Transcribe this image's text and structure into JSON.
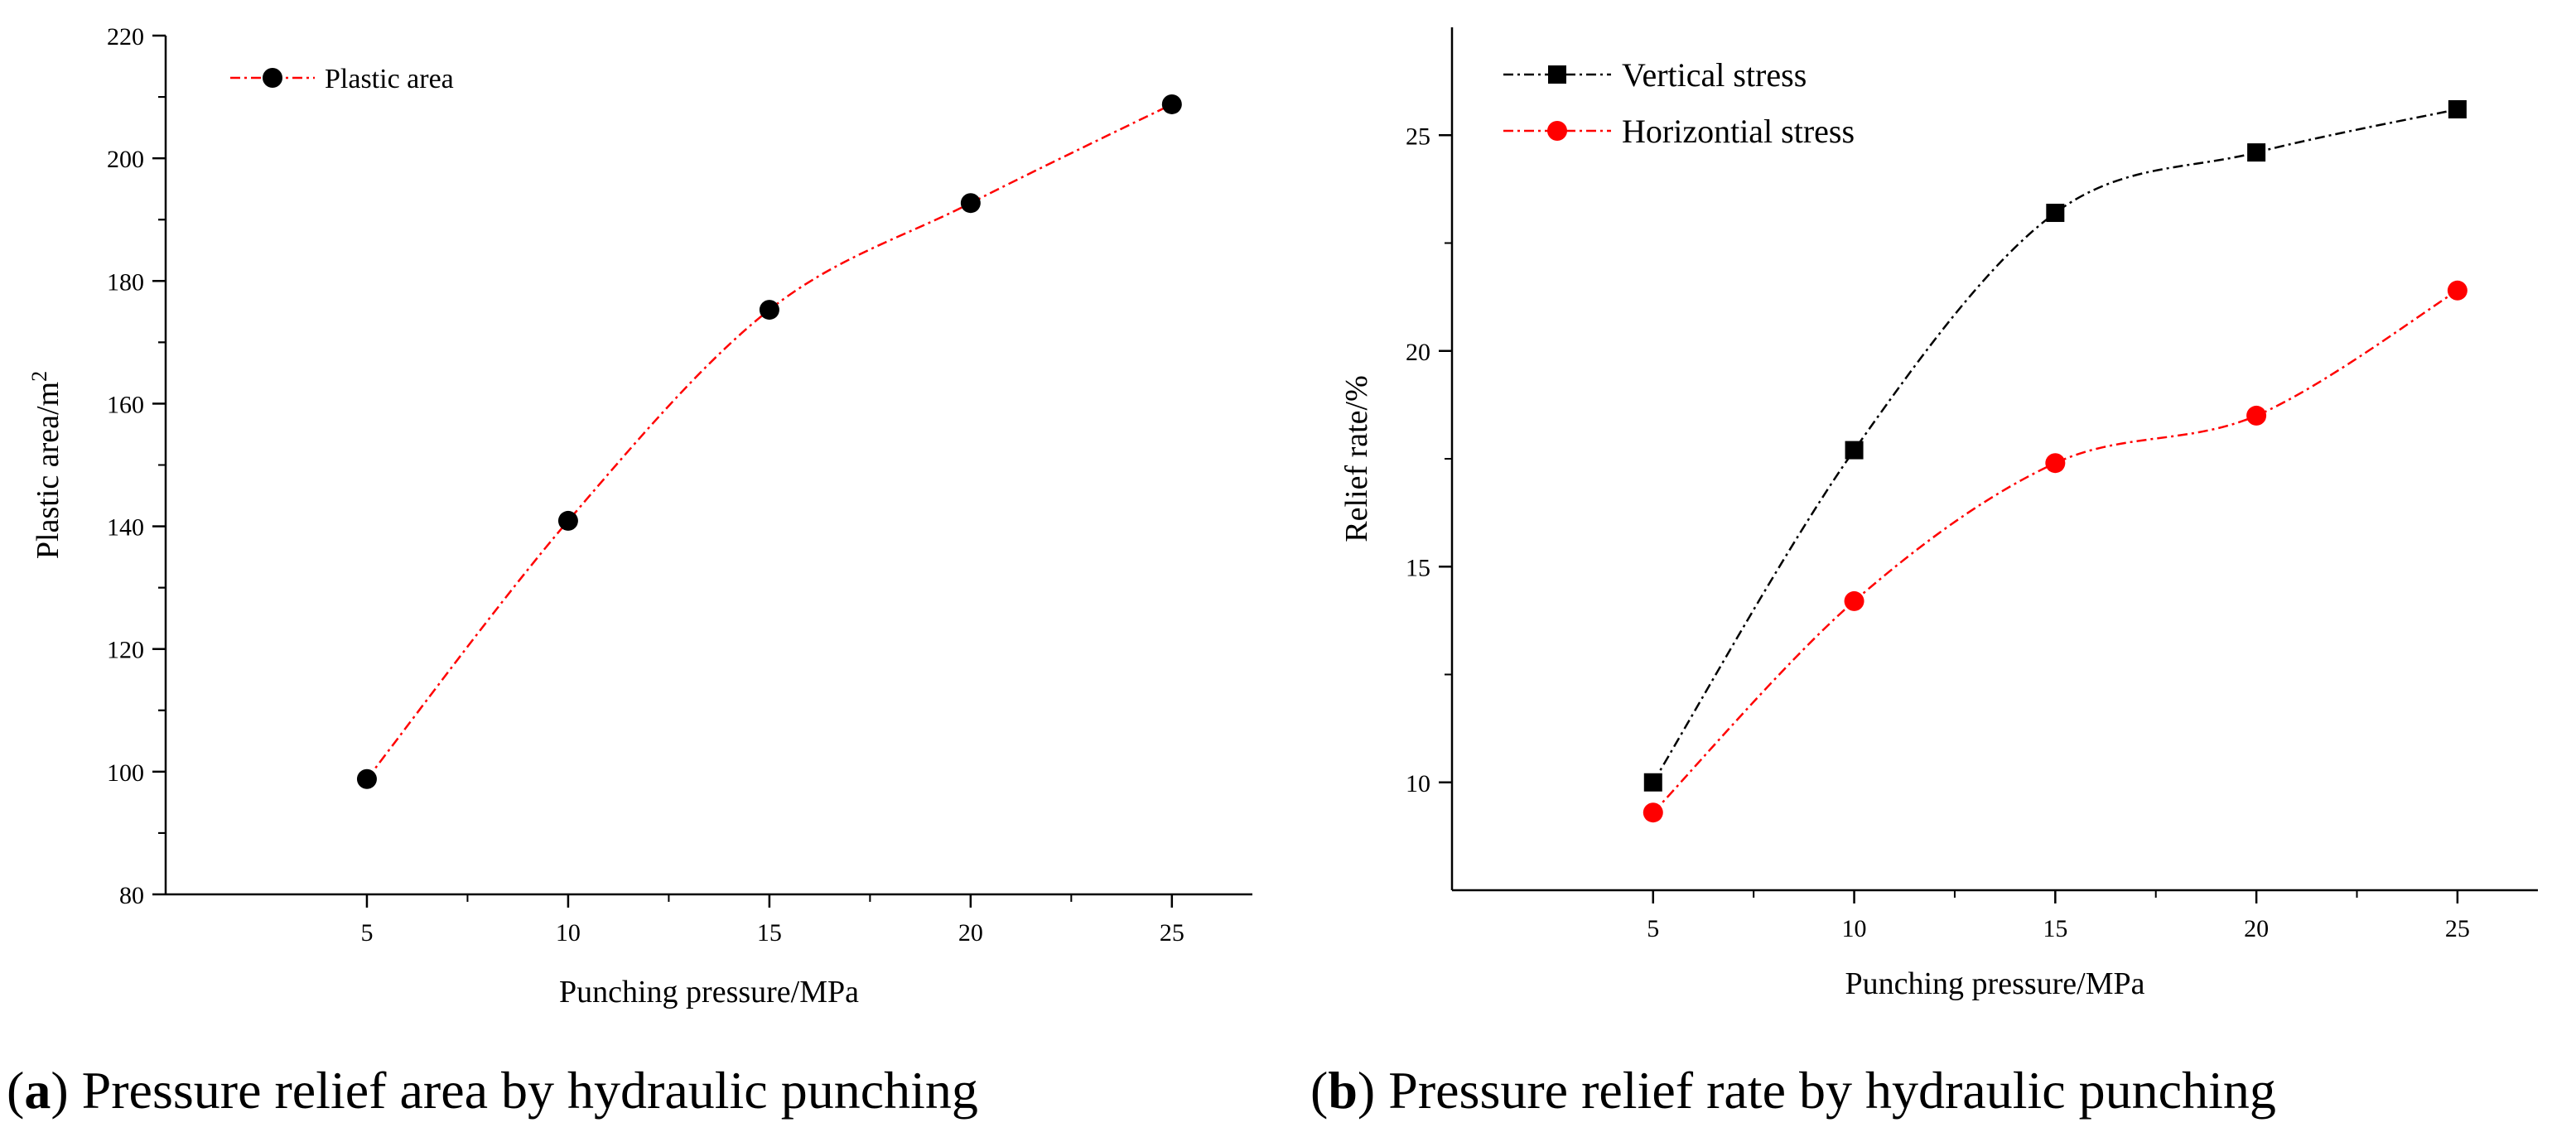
{
  "colors": {
    "black": "#000000",
    "red": "#ff0000"
  },
  "chart_data": [
    {
      "type": "line",
      "panel_label": "a",
      "caption": "Pressure relief area by hydraulic punching",
      "xlabel": "Punching pressure/MPa",
      "ylabel": "Plastic area/m",
      "ylabel_superscript": "2",
      "xlim": [
        0,
        27
      ],
      "ylim": [
        80,
        220
      ],
      "xticks": [
        5,
        10,
        15,
        20,
        25
      ],
      "xticks_labels": [
        "5",
        "10",
        "15",
        "20",
        "25"
      ],
      "yticks": [
        80,
        100,
        120,
        140,
        160,
        180,
        200,
        220
      ],
      "yticks_labels": [
        "80",
        "100",
        "120",
        "140",
        "160",
        "180",
        "200",
        "220"
      ],
      "legend_position": "top-left",
      "series": [
        {
          "name": "Plastic area",
          "marker": "circle",
          "marker_color": "#000000",
          "line_color": "#ff0000",
          "line_style": "dash-dot",
          "x": [
            5,
            10,
            15,
            20,
            25
          ],
          "values": [
            98.8,
            140.9,
            175.3,
            192.7,
            208.8
          ]
        }
      ]
    },
    {
      "type": "line",
      "panel_label": "b",
      "caption": "Pressure relief rate by hydraulic punching",
      "xlabel": "Punching pressure/MPa",
      "ylabel": "Relief rate/%",
      "xlim": [
        0,
        27
      ],
      "ylim": [
        7.5,
        27.5
      ],
      "xticks": [
        5,
        10,
        15,
        20,
        25
      ],
      "xticks_labels": [
        "5",
        "10",
        "15",
        "20",
        "25"
      ],
      "yticks": [
        10,
        15,
        20,
        25
      ],
      "yticks_labels": [
        "10",
        "15",
        "20",
        "25"
      ],
      "legend_position": "top-left",
      "series": [
        {
          "name": "Vertical stress",
          "marker": "square",
          "marker_color": "#000000",
          "line_color": "#000000",
          "line_style": "dash-dot",
          "x": [
            5,
            10,
            15,
            20,
            25
          ],
          "values": [
            10.0,
            17.7,
            23.2,
            24.6,
            25.6
          ]
        },
        {
          "name": "Horizontial stress",
          "marker": "circle",
          "marker_color": "#ff0000",
          "line_color": "#ff0000",
          "line_style": "dash-dot",
          "x": [
            5,
            10,
            15,
            20,
            25
          ],
          "values": [
            9.3,
            14.2,
            17.4,
            18.5,
            21.4
          ]
        }
      ]
    }
  ]
}
